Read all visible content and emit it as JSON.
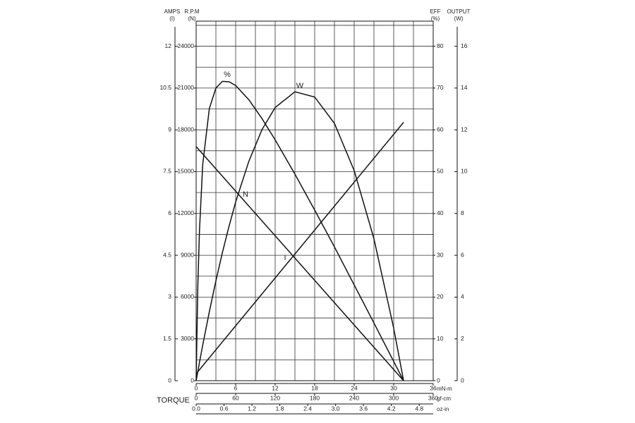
{
  "chart_data": {
    "type": "line",
    "xlim": [
      0,
      36
    ],
    "xticks": [
      0,
      6,
      12,
      18,
      24,
      30,
      36
    ],
    "x_label": "mN-m",
    "xminor": [
      0,
      3,
      6,
      9,
      12,
      15,
      18,
      21,
      24,
      27,
      30,
      33,
      36
    ],
    "x2lim": [
      0,
      360
    ],
    "x2ticks": [
      0,
      60,
      120,
      180,
      240,
      300,
      360
    ],
    "x2_label": "gf-cm",
    "x3lim": [
      0,
      5.1
    ],
    "x3ticks": [
      {
        "value": 0,
        "label": "0.0"
      },
      0.6,
      1.2,
      1.8,
      2.4,
      {
        "value": 3,
        "label": "3.0"
      },
      3.6,
      4.2,
      4.8
    ],
    "x3_label": "oz-in",
    "torque_label": "TORQUE",
    "ylim": [
      0,
      25800
    ],
    "yticks": [
      0,
      3000,
      6000,
      9000,
      12000,
      15000,
      18000,
      21000,
      24000
    ],
    "y_label": "R.P.M",
    "y_unit": "(N)",
    "yminor": [
      0,
      1500,
      3000,
      4500,
      6000,
      7500,
      9000,
      10500,
      12000,
      13500,
      15000,
      16500,
      18000,
      19500,
      21000,
      22500,
      24000,
      25500
    ],
    "y2lim": [
      0,
      12.9
    ],
    "y2ticks": [
      0,
      1.5,
      3,
      4.5,
      6,
      7.5,
      9,
      10.5,
      12
    ],
    "y2_label": "AMPS",
    "y2_unit": "(I)",
    "y3lim": [
      0,
      86
    ],
    "y3ticks": [
      0,
      10,
      20,
      30,
      40,
      50,
      60,
      70,
      80
    ],
    "y3_label": "EFF",
    "y3_unit": "(%)",
    "y4lim": [
      0,
      17.2
    ],
    "y4ticks": [
      0,
      2,
      4,
      6,
      8,
      10,
      12,
      14,
      16
    ],
    "y4_label": "OUTPUT",
    "y4_unit": "(W)",
    "series": [
      {
        "name": "N",
        "axis": "y",
        "color": "#111111",
        "x": [
          0,
          31.5
        ],
        "values": [
          16800,
          0
        ]
      },
      {
        "name": "I",
        "axis": "y2",
        "color": "#111111",
        "x": [
          0,
          31.5
        ],
        "values": [
          0.25,
          9.27
        ]
      },
      {
        "name": "%",
        "axis": "y3",
        "color": "#111111",
        "x": [
          0,
          0.25,
          0.5,
          1,
          2,
          3,
          4,
          5,
          6,
          8,
          10,
          12,
          15,
          18,
          21,
          24,
          27,
          30,
          31.5
        ],
        "values": [
          0,
          22.1,
          35.8,
          51.7,
          65.1,
          70,
          71.6,
          71.5,
          70.6,
          67.2,
          62.7,
          57.6,
          49.4,
          40.8,
          32,
          22.9,
          13.8,
          4.6,
          0
        ]
      },
      {
        "name": "W",
        "axis": "y4",
        "color": "#111111",
        "x": [
          0,
          0.5,
          1,
          2,
          3,
          4,
          5,
          6,
          8,
          10,
          12,
          15,
          18,
          21,
          24,
          27,
          30,
          31.5
        ],
        "values": [
          0,
          0.87,
          1.7,
          3.3,
          4.78,
          6.14,
          7.4,
          8.55,
          10.5,
          12.01,
          13.07,
          13.82,
          13.57,
          12.31,
          10.05,
          6.79,
          2.51,
          0
        ]
      }
    ]
  }
}
